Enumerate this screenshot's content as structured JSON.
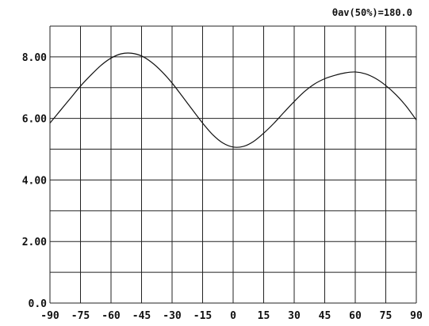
{
  "chart_data": {
    "type": "line",
    "title": "",
    "xlabel": "",
    "ylabel": "",
    "annotation": "θav(50%)=180.0",
    "xlim": [
      -90,
      90
    ],
    "ylim": [
      0,
      9
    ],
    "x_ticks": [
      -90,
      -75,
      -60,
      -45,
      -30,
      -15,
      0,
      15,
      30,
      45,
      60,
      75,
      90
    ],
    "x_tick_labels": [
      "-90",
      "-75",
      "-60",
      "-45",
      "-30",
      "-15",
      "0",
      "15",
      "30",
      "45",
      "60",
      "75",
      "90"
    ],
    "y_ticks": [
      0,
      2,
      4,
      6,
      8
    ],
    "y_tick_labels": [
      "0.0",
      "2.00",
      "4.00",
      "6.00",
      "8.00"
    ],
    "grid": true,
    "series": [
      {
        "x": [
          -90,
          -85,
          -80,
          -75,
          -70,
          -65,
          -60,
          -55,
          -50,
          -45,
          -40,
          -35,
          -30,
          -25,
          -20,
          -15,
          -10,
          -5,
          0,
          5,
          10,
          15,
          20,
          25,
          30,
          35,
          40,
          45,
          50,
          55,
          60,
          65,
          70,
          75,
          80,
          85,
          90
        ],
        "y": [
          5.85,
          6.25,
          6.65,
          7.05,
          7.4,
          7.72,
          7.96,
          8.1,
          8.12,
          8.03,
          7.82,
          7.52,
          7.15,
          6.72,
          6.28,
          5.85,
          5.47,
          5.2,
          5.07,
          5.09,
          5.25,
          5.52,
          5.84,
          6.2,
          6.55,
          6.87,
          7.12,
          7.29,
          7.4,
          7.48,
          7.51,
          7.45,
          7.3,
          7.07,
          6.77,
          6.4,
          5.95
        ]
      }
    ]
  }
}
